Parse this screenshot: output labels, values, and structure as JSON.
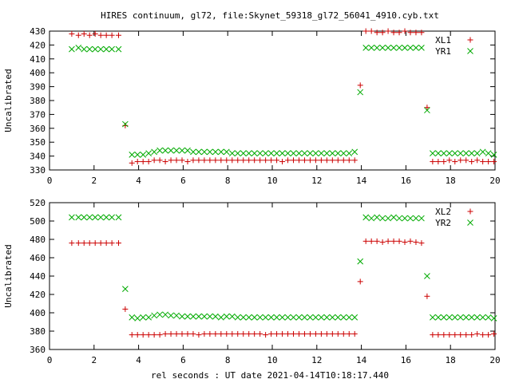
{
  "title": "HIRES continuum, gl72, file:Skynet_59318_gl72_56041_4910.cyb.txt",
  "xlabel": "rel seconds : UT date 2021-04-14T10:18:17.440",
  "chart_data": [
    {
      "type": "scatter",
      "xlim": [
        0,
        20
      ],
      "ylim": [
        330,
        430
      ],
      "xticks": [
        0,
        2,
        4,
        6,
        8,
        10,
        12,
        14,
        16,
        18,
        20
      ],
      "yticks": [
        330,
        340,
        350,
        360,
        370,
        380,
        390,
        400,
        410,
        420,
        430
      ],
      "xlabel": "",
      "ylabel": "Uncalibrated",
      "legend_position": "top-right",
      "grid": false,
      "series": [
        {
          "name": "XL1",
          "marker": "plus",
          "color": "#cc0000",
          "x": [
            1.0,
            1.3,
            1.55,
            1.8,
            2.05,
            2.3,
            2.55,
            2.8,
            3.1,
            3.4,
            3.7,
            3.95,
            4.2,
            4.45,
            4.7,
            4.95,
            5.2,
            5.45,
            5.7,
            5.95,
            6.2,
            6.45,
            6.7,
            6.95,
            7.2,
            7.45,
            7.7,
            7.95,
            8.2,
            8.45,
            8.7,
            8.95,
            9.2,
            9.45,
            9.7,
            9.95,
            10.2,
            10.45,
            10.7,
            10.95,
            11.2,
            11.45,
            11.7,
            11.95,
            12.2,
            12.45,
            12.7,
            12.95,
            13.2,
            13.45,
            13.7,
            13.95,
            14.2,
            14.45,
            14.7,
            14.95,
            15.2,
            15.45,
            15.7,
            15.95,
            16.2,
            16.45,
            16.7,
            16.95,
            17.2,
            17.45,
            17.7,
            17.95,
            18.2,
            18.45,
            18.7,
            18.95,
            19.2,
            19.45,
            19.7,
            19.95
          ],
          "y": [
            428,
            427,
            428,
            427,
            428,
            427,
            427,
            427,
            427,
            362,
            335,
            336,
            336,
            336,
            337,
            337,
            336,
            337,
            337,
            337,
            336,
            337,
            337,
            337,
            337,
            337,
            337,
            337,
            337,
            337,
            337,
            337,
            337,
            337,
            337,
            337,
            337,
            336,
            337,
            337,
            337,
            337,
            337,
            337,
            337,
            337,
            337,
            337,
            337,
            337,
            337,
            391,
            430,
            430,
            429,
            429,
            430,
            429,
            429,
            430,
            429,
            429,
            429,
            375,
            336,
            336,
            336,
            337,
            336,
            337,
            337,
            336,
            337,
            336,
            336,
            336
          ]
        },
        {
          "name": "YR1",
          "marker": "cross",
          "color": "#00aa00",
          "x": [
            1.0,
            1.3,
            1.55,
            1.8,
            2.05,
            2.3,
            2.55,
            2.8,
            3.1,
            3.4,
            3.7,
            3.95,
            4.2,
            4.45,
            4.7,
            4.95,
            5.2,
            5.45,
            5.7,
            5.95,
            6.2,
            6.45,
            6.7,
            6.95,
            7.2,
            7.45,
            7.7,
            7.95,
            8.2,
            8.45,
            8.7,
            8.95,
            9.2,
            9.45,
            9.7,
            9.95,
            10.2,
            10.45,
            10.7,
            10.95,
            11.2,
            11.45,
            11.7,
            11.95,
            12.2,
            12.45,
            12.7,
            12.95,
            13.2,
            13.45,
            13.7,
            13.95,
            14.2,
            14.45,
            14.7,
            14.95,
            15.2,
            15.45,
            15.7,
            15.95,
            16.2,
            16.45,
            16.7,
            16.95,
            17.2,
            17.45,
            17.7,
            17.95,
            18.2,
            18.45,
            18.7,
            18.95,
            19.2,
            19.45,
            19.7,
            19.95
          ],
          "y": [
            417,
            418,
            417,
            417,
            417,
            417,
            417,
            417,
            417,
            363,
            341,
            341,
            341,
            342,
            343,
            344,
            344,
            344,
            344,
            344,
            344,
            343,
            343,
            343,
            343,
            343,
            343,
            343,
            342,
            342,
            342,
            342,
            342,
            342,
            342,
            342,
            342,
            342,
            342,
            342,
            342,
            342,
            342,
            342,
            342,
            342,
            342,
            342,
            342,
            342,
            343,
            386,
            418,
            418,
            418,
            418,
            418,
            418,
            418,
            418,
            418,
            418,
            418,
            373,
            342,
            342,
            342,
            342,
            342,
            342,
            342,
            342,
            342,
            343,
            342,
            341
          ]
        }
      ]
    },
    {
      "type": "scatter",
      "xlim": [
        0,
        20
      ],
      "ylim": [
        360,
        520
      ],
      "xticks": [
        0,
        2,
        4,
        6,
        8,
        10,
        12,
        14,
        16,
        18,
        20
      ],
      "yticks": [
        360,
        380,
        400,
        420,
        440,
        460,
        480,
        500,
        520
      ],
      "xlabel": "rel seconds : UT date 2021-04-14T10:18:17.440",
      "ylabel": "Uncalibrated",
      "legend_position": "top-right",
      "grid": false,
      "series": [
        {
          "name": "XL2",
          "marker": "plus",
          "color": "#cc0000",
          "x": [
            1.0,
            1.3,
            1.55,
            1.8,
            2.05,
            2.3,
            2.55,
            2.8,
            3.1,
            3.4,
            3.7,
            3.95,
            4.2,
            4.45,
            4.7,
            4.95,
            5.2,
            5.45,
            5.7,
            5.95,
            6.2,
            6.45,
            6.7,
            6.95,
            7.2,
            7.45,
            7.7,
            7.95,
            8.2,
            8.45,
            8.7,
            8.95,
            9.2,
            9.45,
            9.7,
            9.95,
            10.2,
            10.45,
            10.7,
            10.95,
            11.2,
            11.45,
            11.7,
            11.95,
            12.2,
            12.45,
            12.7,
            12.95,
            13.2,
            13.45,
            13.7,
            13.95,
            14.2,
            14.45,
            14.7,
            14.95,
            15.2,
            15.45,
            15.7,
            15.95,
            16.2,
            16.45,
            16.7,
            16.95,
            17.2,
            17.45,
            17.7,
            17.95,
            18.2,
            18.45,
            18.7,
            18.95,
            19.2,
            19.45,
            19.7,
            19.95
          ],
          "y": [
            476,
            476,
            476,
            476,
            476,
            476,
            476,
            476,
            476,
            404,
            376,
            376,
            376,
            376,
            376,
            376,
            377,
            377,
            377,
            377,
            377,
            377,
            376,
            377,
            377,
            377,
            377,
            377,
            377,
            377,
            377,
            377,
            377,
            377,
            376,
            377,
            377,
            377,
            377,
            377,
            377,
            377,
            377,
            377,
            377,
            377,
            377,
            377,
            377,
            377,
            377,
            434,
            478,
            478,
            478,
            477,
            478,
            478,
            478,
            477,
            478,
            477,
            476,
            418,
            376,
            376,
            376,
            376,
            376,
            376,
            376,
            376,
            377,
            376,
            376,
            377
          ]
        },
        {
          "name": "YR2",
          "marker": "cross",
          "color": "#00aa00",
          "x": [
            1.0,
            1.3,
            1.55,
            1.8,
            2.05,
            2.3,
            2.55,
            2.8,
            3.1,
            3.4,
            3.7,
            3.95,
            4.2,
            4.45,
            4.7,
            4.95,
            5.2,
            5.45,
            5.7,
            5.95,
            6.2,
            6.45,
            6.7,
            6.95,
            7.2,
            7.45,
            7.7,
            7.95,
            8.2,
            8.45,
            8.7,
            8.95,
            9.2,
            9.45,
            9.7,
            9.95,
            10.2,
            10.45,
            10.7,
            10.95,
            11.2,
            11.45,
            11.7,
            11.95,
            12.2,
            12.45,
            12.7,
            12.95,
            13.2,
            13.45,
            13.7,
            13.95,
            14.2,
            14.45,
            14.7,
            14.95,
            15.2,
            15.45,
            15.7,
            15.95,
            16.2,
            16.45,
            16.7,
            16.95,
            17.2,
            17.45,
            17.7,
            17.95,
            18.2,
            18.45,
            18.7,
            18.95,
            19.2,
            19.45,
            19.7,
            19.95
          ],
          "y": [
            504,
            504,
            504,
            504,
            504,
            504,
            504,
            504,
            504,
            426,
            395,
            394,
            395,
            395,
            397,
            398,
            398,
            397,
            397,
            396,
            396,
            396,
            396,
            396,
            396,
            396,
            395,
            396,
            396,
            395,
            395,
            395,
            395,
            395,
            395,
            395,
            395,
            395,
            395,
            395,
            395,
            395,
            395,
            395,
            395,
            395,
            395,
            395,
            395,
            395,
            395,
            456,
            504,
            503,
            504,
            503,
            503,
            504,
            503,
            503,
            503,
            503,
            503,
            440,
            395,
            395,
            395,
            395,
            395,
            395,
            395,
            395,
            395,
            395,
            395,
            394
          ]
        }
      ]
    }
  ]
}
